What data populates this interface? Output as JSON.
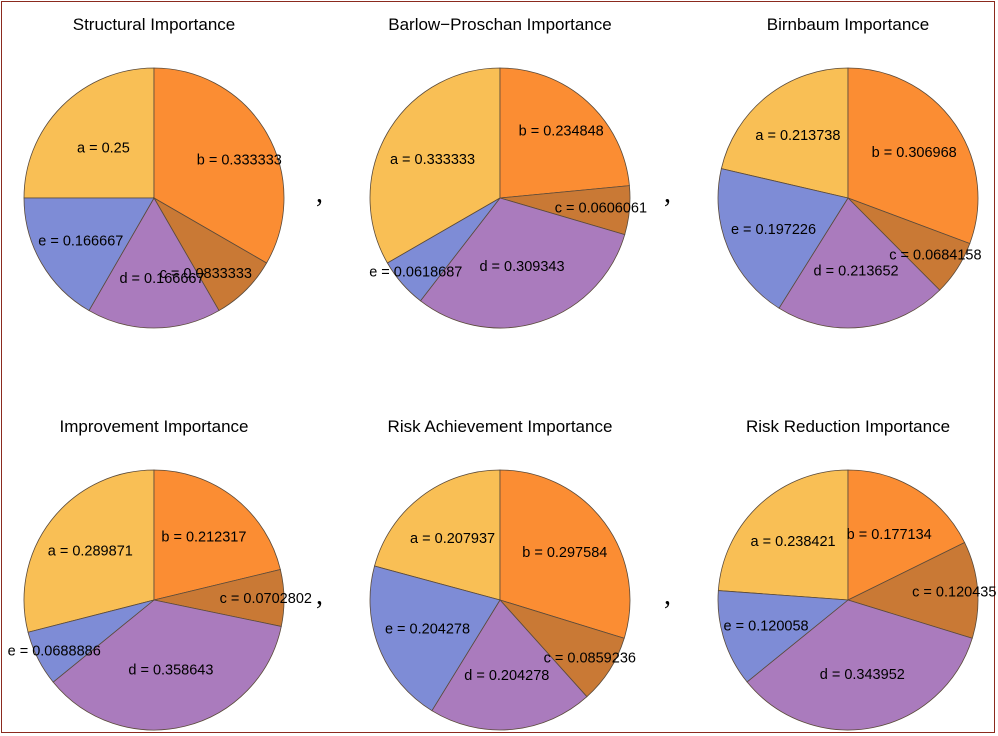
{
  "colors": {
    "a": "#f9bf55",
    "b": "#fb8d33",
    "c": "#c97935",
    "d": "#aa7bbd",
    "e": "#7e8cd6",
    "border": "#8b2a1e"
  },
  "separators": [
    ",",
    ",",
    ",",
    ","
  ],
  "chart_data": [
    {
      "type": "pie",
      "title": "Structural Importance",
      "slices": [
        {
          "key": "a",
          "label": "a = 0.25",
          "value": 0.25
        },
        {
          "key": "b",
          "label": "b = 0.333333",
          "value": 0.333333
        },
        {
          "key": "c",
          "label": "c = 0.0833333",
          "value": 0.0833333
        },
        {
          "key": "d",
          "label": "d = 0.166667",
          "value": 0.166667
        },
        {
          "key": "e",
          "label": "e = 0.166667",
          "value": 0.166667
        }
      ]
    },
    {
      "type": "pie",
      "title": "Barlow−Proschan Importance",
      "slices": [
        {
          "key": "a",
          "label": "a = 0.333333",
          "value": 0.333333
        },
        {
          "key": "b",
          "label": "b = 0.234848",
          "value": 0.234848
        },
        {
          "key": "c",
          "label": "c = 0.0606061",
          "value": 0.0606061
        },
        {
          "key": "d",
          "label": "d = 0.309343",
          "value": 0.309343
        },
        {
          "key": "e",
          "label": "e = 0.0618687",
          "value": 0.0618687
        }
      ]
    },
    {
      "type": "pie",
      "title": "Birnbaum Importance",
      "slices": [
        {
          "key": "a",
          "label": "a = 0.213738",
          "value": 0.213738
        },
        {
          "key": "b",
          "label": "b = 0.306968",
          "value": 0.306968
        },
        {
          "key": "c",
          "label": "c = 0.0684158",
          "value": 0.0684158
        },
        {
          "key": "d",
          "label": "d = 0.213652",
          "value": 0.213652
        },
        {
          "key": "e",
          "label": "e = 0.197226",
          "value": 0.197226
        }
      ]
    },
    {
      "type": "pie",
      "title": "Improvement Importance",
      "slices": [
        {
          "key": "a",
          "label": "a = 0.289871",
          "value": 0.289871
        },
        {
          "key": "b",
          "label": "b = 0.212317",
          "value": 0.212317
        },
        {
          "key": "c",
          "label": "c = 0.0702802",
          "value": 0.0702802
        },
        {
          "key": "d",
          "label": "d = 0.358643",
          "value": 0.358643
        },
        {
          "key": "e",
          "label": "e = 0.0688886",
          "value": 0.0688886
        }
      ]
    },
    {
      "type": "pie",
      "title": "Risk Achievement Importance",
      "slices": [
        {
          "key": "a",
          "label": "a = 0.207937",
          "value": 0.207937
        },
        {
          "key": "b",
          "label": "b = 0.297584",
          "value": 0.297584
        },
        {
          "key": "c",
          "label": "c = 0.0859236",
          "value": 0.0859236
        },
        {
          "key": "d",
          "label": "d = 0.204278",
          "value": 0.204278
        },
        {
          "key": "e",
          "label": "e = 0.204278",
          "value": 0.204278
        }
      ]
    },
    {
      "type": "pie",
      "title": "Risk Reduction Importance",
      "slices": [
        {
          "key": "a",
          "label": "a = 0.238421",
          "value": 0.238421
        },
        {
          "key": "b",
          "label": "b = 0.177134",
          "value": 0.177134
        },
        {
          "key": "c",
          "label": "c = 0.120435",
          "value": 0.120435
        },
        {
          "key": "d",
          "label": "d = 0.343952",
          "value": 0.343952
        },
        {
          "key": "e",
          "label": "e = 0.120058",
          "value": 0.120058
        }
      ]
    }
  ]
}
